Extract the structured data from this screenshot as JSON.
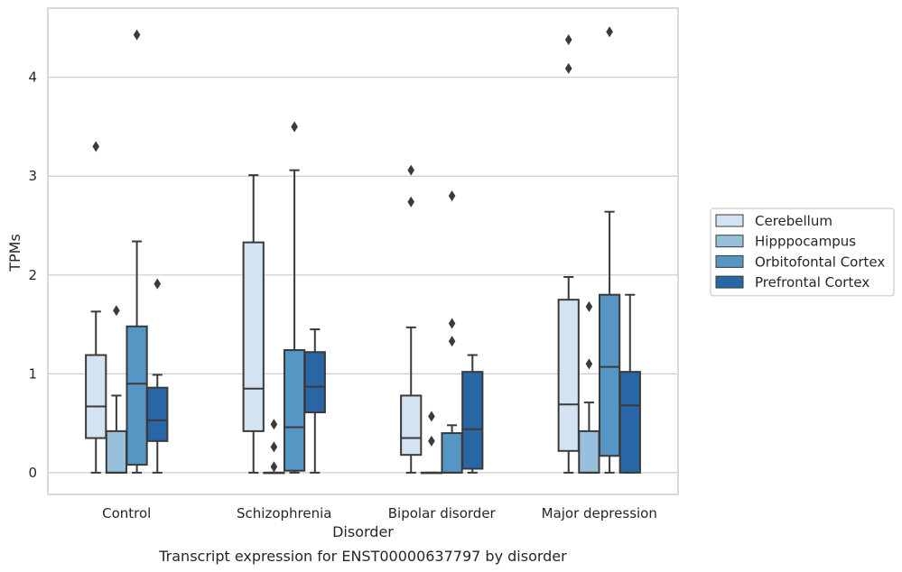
{
  "chart_data": {
    "type": "box",
    "title": "",
    "caption": "Transcript expression for ENST00000637797 by disorder",
    "xlabel": "Disorder",
    "ylabel": "TPMs",
    "ylim": [
      -0.22,
      4.7
    ],
    "yticks": [
      0,
      1,
      2,
      3,
      4
    ],
    "grid": "horizontal",
    "legend_position": "right",
    "categories": [
      "Control",
      "Schizophrenia",
      "Bipolar disorder",
      "Major depression"
    ],
    "series": [
      {
        "name": "Cerebellum",
        "color": "#d3e3f2",
        "boxes": [
          {
            "whisker_low": 0,
            "q1": 0.35,
            "median": 0.67,
            "q3": 1.19,
            "whisker_high": 1.63,
            "outliers": [
              3.3
            ]
          },
          {
            "whisker_low": 0,
            "q1": 0.42,
            "median": 0.85,
            "q3": 2.33,
            "whisker_high": 3.01,
            "outliers": []
          },
          {
            "whisker_low": 0,
            "q1": 0.18,
            "median": 0.35,
            "q3": 0.78,
            "whisker_high": 1.47,
            "outliers": [
              2.74,
              3.06
            ]
          },
          {
            "whisker_low": 0,
            "q1": 0.22,
            "median": 0.69,
            "q3": 1.75,
            "whisker_high": 1.98,
            "outliers": [
              4.09,
              4.38
            ]
          }
        ]
      },
      {
        "name": "Hipppocampus",
        "color": "#98c0dd",
        "boxes": [
          {
            "whisker_low": 0,
            "q1": 0,
            "median": 0,
            "q3": 0.42,
            "whisker_high": 0.78,
            "outliers": [
              1.64
            ]
          },
          {
            "whisker_low": 0,
            "q1": 0,
            "median": 0,
            "q3": 0,
            "whisker_high": 0,
            "outliers": [
              0.06,
              0.26,
              0.49
            ]
          },
          {
            "whisker_low": 0,
            "q1": 0,
            "median": 0,
            "q3": 0,
            "whisker_high": 0,
            "outliers": [
              0.32,
              0.57
            ]
          },
          {
            "whisker_low": 0,
            "q1": 0,
            "median": 0,
            "q3": 0.42,
            "whisker_high": 0.71,
            "outliers": [
              1.1,
              1.68
            ]
          }
        ]
      },
      {
        "name": "Orbitofontal Cortex",
        "color": "#5596c5",
        "boxes": [
          {
            "whisker_low": 0,
            "q1": 0.08,
            "median": 0.9,
            "q3": 1.48,
            "whisker_high": 2.34,
            "outliers": [
              4.43
            ]
          },
          {
            "whisker_low": 0,
            "q1": 0.02,
            "median": 0.46,
            "q3": 1.24,
            "whisker_high": 3.06,
            "outliers": [
              3.5
            ]
          },
          {
            "whisker_low": 0,
            "q1": 0,
            "median": 0,
            "q3": 0.4,
            "whisker_high": 0.48,
            "outliers": [
              1.33,
              1.51,
              2.8
            ]
          },
          {
            "whisker_low": 0,
            "q1": 0.17,
            "median": 1.07,
            "q3": 1.8,
            "whisker_high": 2.64,
            "outliers": [
              4.46
            ]
          }
        ]
      },
      {
        "name": "Prefrontal Cortex",
        "color": "#2866a6",
        "boxes": [
          {
            "whisker_low": 0,
            "q1": 0.32,
            "median": 0.53,
            "q3": 0.86,
            "whisker_high": 0.99,
            "outliers": [
              1.91
            ]
          },
          {
            "whisker_low": 0,
            "q1": 0.61,
            "median": 0.87,
            "q3": 1.22,
            "whisker_high": 1.45,
            "outliers": []
          },
          {
            "whisker_low": 0,
            "q1": 0.04,
            "median": 0.44,
            "q3": 1.02,
            "whisker_high": 1.19,
            "outliers": []
          },
          {
            "whisker_low": 0,
            "q1": 0,
            "median": 0.68,
            "q3": 1.02,
            "whisker_high": 1.8,
            "outliers": []
          }
        ]
      }
    ]
  }
}
